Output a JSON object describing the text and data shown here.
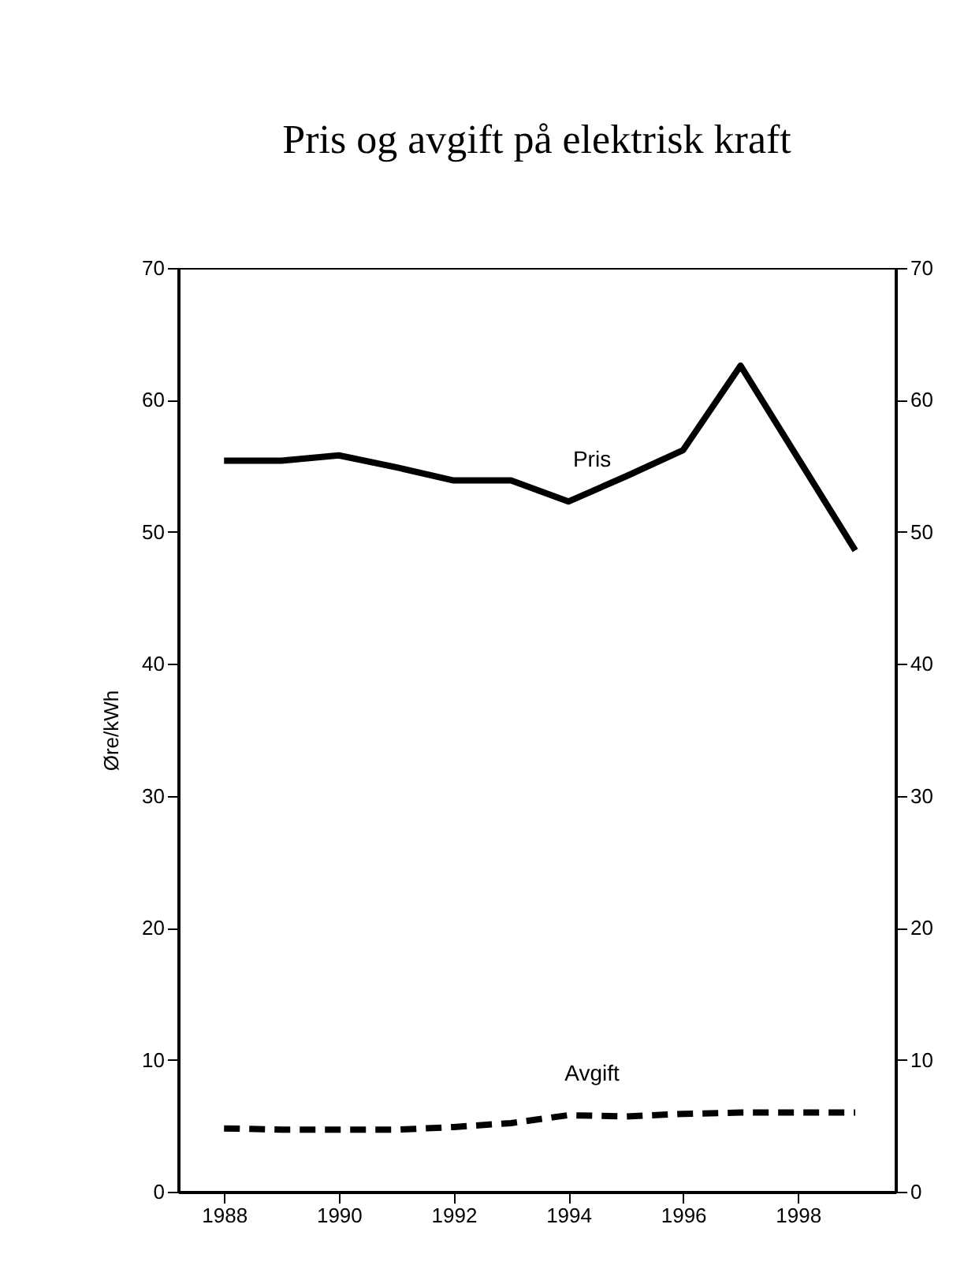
{
  "chart_data": {
    "type": "line",
    "title": "Pris og avgift på elektrisk kraft",
    "ylabel": "Øre/kWh",
    "x": [
      1988,
      1989,
      1990,
      1991,
      1992,
      1993,
      1994,
      1995,
      1996,
      1997,
      1998,
      1999
    ],
    "series": [
      {
        "name": "Pris",
        "color": "#000000",
        "line_style": "solid",
        "values": [
          55.4,
          55.4,
          55.8,
          54.9,
          53.9,
          53.9,
          52.3,
          54.2,
          56.2,
          62.6,
          55.6,
          48.6
        ]
      },
      {
        "name": "Avgift",
        "color": "#000000",
        "line_style": "dashed",
        "values": [
          4.8,
          4.7,
          4.7,
          4.7,
          4.9,
          5.2,
          5.8,
          5.7,
          5.9,
          6.0,
          6.0,
          6.0
        ]
      }
    ],
    "xlim": [
      1987.2,
      1999.7
    ],
    "xticks": [
      1988,
      1990,
      1992,
      1994,
      1996,
      1998
    ],
    "ylim": [
      0,
      70
    ],
    "yticks": [
      0,
      10,
      20,
      30,
      40,
      50,
      60,
      70
    ],
    "y2lim": [
      0,
      70
    ],
    "y2ticks": [
      0,
      10,
      20,
      30,
      40,
      50,
      60,
      70
    ],
    "grid": false,
    "legend": false,
    "marker": "none"
  }
}
